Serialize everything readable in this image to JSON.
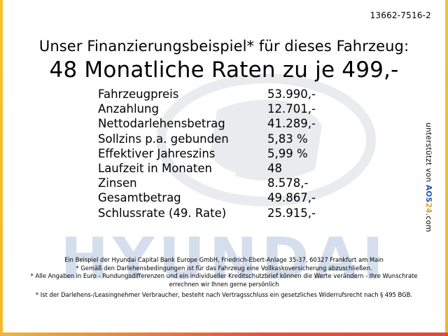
{
  "reference_code": "13662-7516-2",
  "headline": "Unser Finanzierungsbeispiel* für dieses Fahrzeug:",
  "subheadline": "48 Monatliche Raten zu je 499,-",
  "rates": [
    {
      "label": "Fahrzeugpreis",
      "value": "53.990,-"
    },
    {
      "label": "Anzahlung",
      "value": "12.701,-"
    },
    {
      "label": "Nettodarlehensbetrag",
      "value": "41.289,-"
    },
    {
      "label": "Sollzins p.a. gebunden",
      "value": "5,83 %"
    },
    {
      "label": "Effektiver Jahreszins",
      "value": "5,99 %"
    },
    {
      "label": "Laufzeit in Monaten",
      "value": "48"
    },
    {
      "label": "Zinsen",
      "value": "8.578,-"
    },
    {
      "label": "Gesamtbetrag",
      "value": "49.867,-"
    },
    {
      "label": "Schlussrate (49. Rate)",
      "value": "25.915,-"
    }
  ],
  "side_credit": {
    "text": "unterstützt von",
    "logo_a": "A",
    "logo_o": "O",
    "logo_s": "S",
    "logo_num": "24",
    "logo_suffix": ".com"
  },
  "watermark": {
    "brand": "HYUNDAI"
  },
  "footnotes": [
    "Ein Beispiel der Hyundai Capital Bank Europe GmbH, Friedrich-Ebert-Anlage 35-37, 60327 Frankfurt am Main",
    "* Gemäß den Darlehensbedingungen ist für das Fahrzeug eine Vollkaskoversicherung abzuschließen.",
    "* Alle Angaben in Euro - Rundungsdifferenzen und ein individueller Kreditschutzbrief können die Werte verändern - Ihre Wunschrate errechnen wir Ihnen gerne persönlich",
    "* Ist der Darlehens-/Leasingnehmer Verbraucher, besteht nach Vertragsschluss ein gesetzliches Widerrufsrecht nach § 495 BGB."
  ],
  "colors": {
    "frame_yellow": "#f4c430",
    "frame_red": "#e24a3b",
    "logo_blue": "#1e59a8",
    "logo_orange": "#e9a21f",
    "watermark_blue": "#2d5fa6"
  }
}
